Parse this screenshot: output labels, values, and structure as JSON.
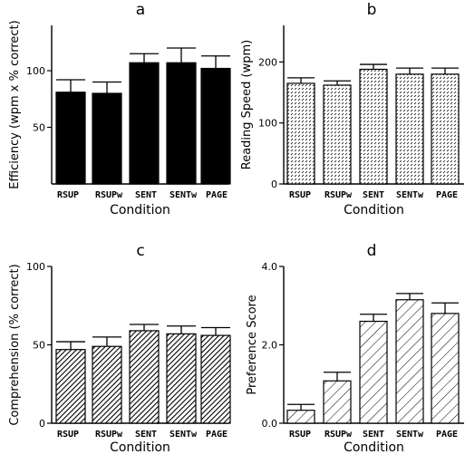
{
  "chart_data": [
    {
      "type": "bar",
      "title": "a",
      "xlabel": "Condition",
      "ylabel": "Efficiency (wpm x % correct)",
      "categories": [
        "RSUP",
        "RSUPw",
        "SENT",
        "SENTw",
        "PAGE"
      ],
      "values": [
        81,
        80,
        107,
        107,
        102
      ],
      "errors": [
        11,
        10,
        8,
        13,
        11
      ],
      "ylim": [
        0,
        140
      ],
      "yticks": [
        "50",
        "100"
      ],
      "ytick_values": [
        50,
        100
      ],
      "fill": "solid"
    },
    {
      "type": "bar",
      "title": "b",
      "xlabel": "Condition",
      "ylabel": "Reading Speed (wpm)",
      "categories": [
        "RSUP",
        "RSUPw",
        "SENT",
        "SENTw",
        "PAGE"
      ],
      "values": [
        165,
        162,
        188,
        180,
        180
      ],
      "errors": [
        9,
        7,
        8,
        10,
        10
      ],
      "ylim": [
        0,
        260
      ],
      "yticks": [
        "0",
        "100",
        "200"
      ],
      "ytick_values": [
        0,
        100,
        200
      ],
      "fill": "dots"
    },
    {
      "type": "bar",
      "title": "c",
      "xlabel": "Condition",
      "ylabel": "Comprehension (% correct)",
      "categories": [
        "RSUP",
        "RSUPw",
        "SENT",
        "SENTw",
        "PAGE"
      ],
      "values": [
        47,
        49,
        59,
        57,
        56
      ],
      "errors": [
        5,
        6,
        4,
        5,
        5
      ],
      "ylim": [
        0,
        100
      ],
      "yticks": [
        "0",
        "50",
        "100"
      ],
      "ytick_values": [
        0,
        50,
        100
      ],
      "fill": "dense-hatch"
    },
    {
      "type": "bar",
      "title": "d",
      "xlabel": "Condition",
      "ylabel": "Preference Score",
      "categories": [
        "RSUP",
        "RSUPw",
        "SENT",
        "SENTw",
        "PAGE"
      ],
      "values": [
        0.33,
        1.08,
        2.6,
        3.15,
        2.8
      ],
      "errors": [
        0.15,
        0.22,
        0.18,
        0.16,
        0.27
      ],
      "ylim": [
        0,
        4.0
      ],
      "yticks": [
        "0.0",
        "2.0",
        "4.0"
      ],
      "ytick_values": [
        0,
        2.0,
        4.0
      ],
      "fill": "wide-hatch"
    }
  ]
}
